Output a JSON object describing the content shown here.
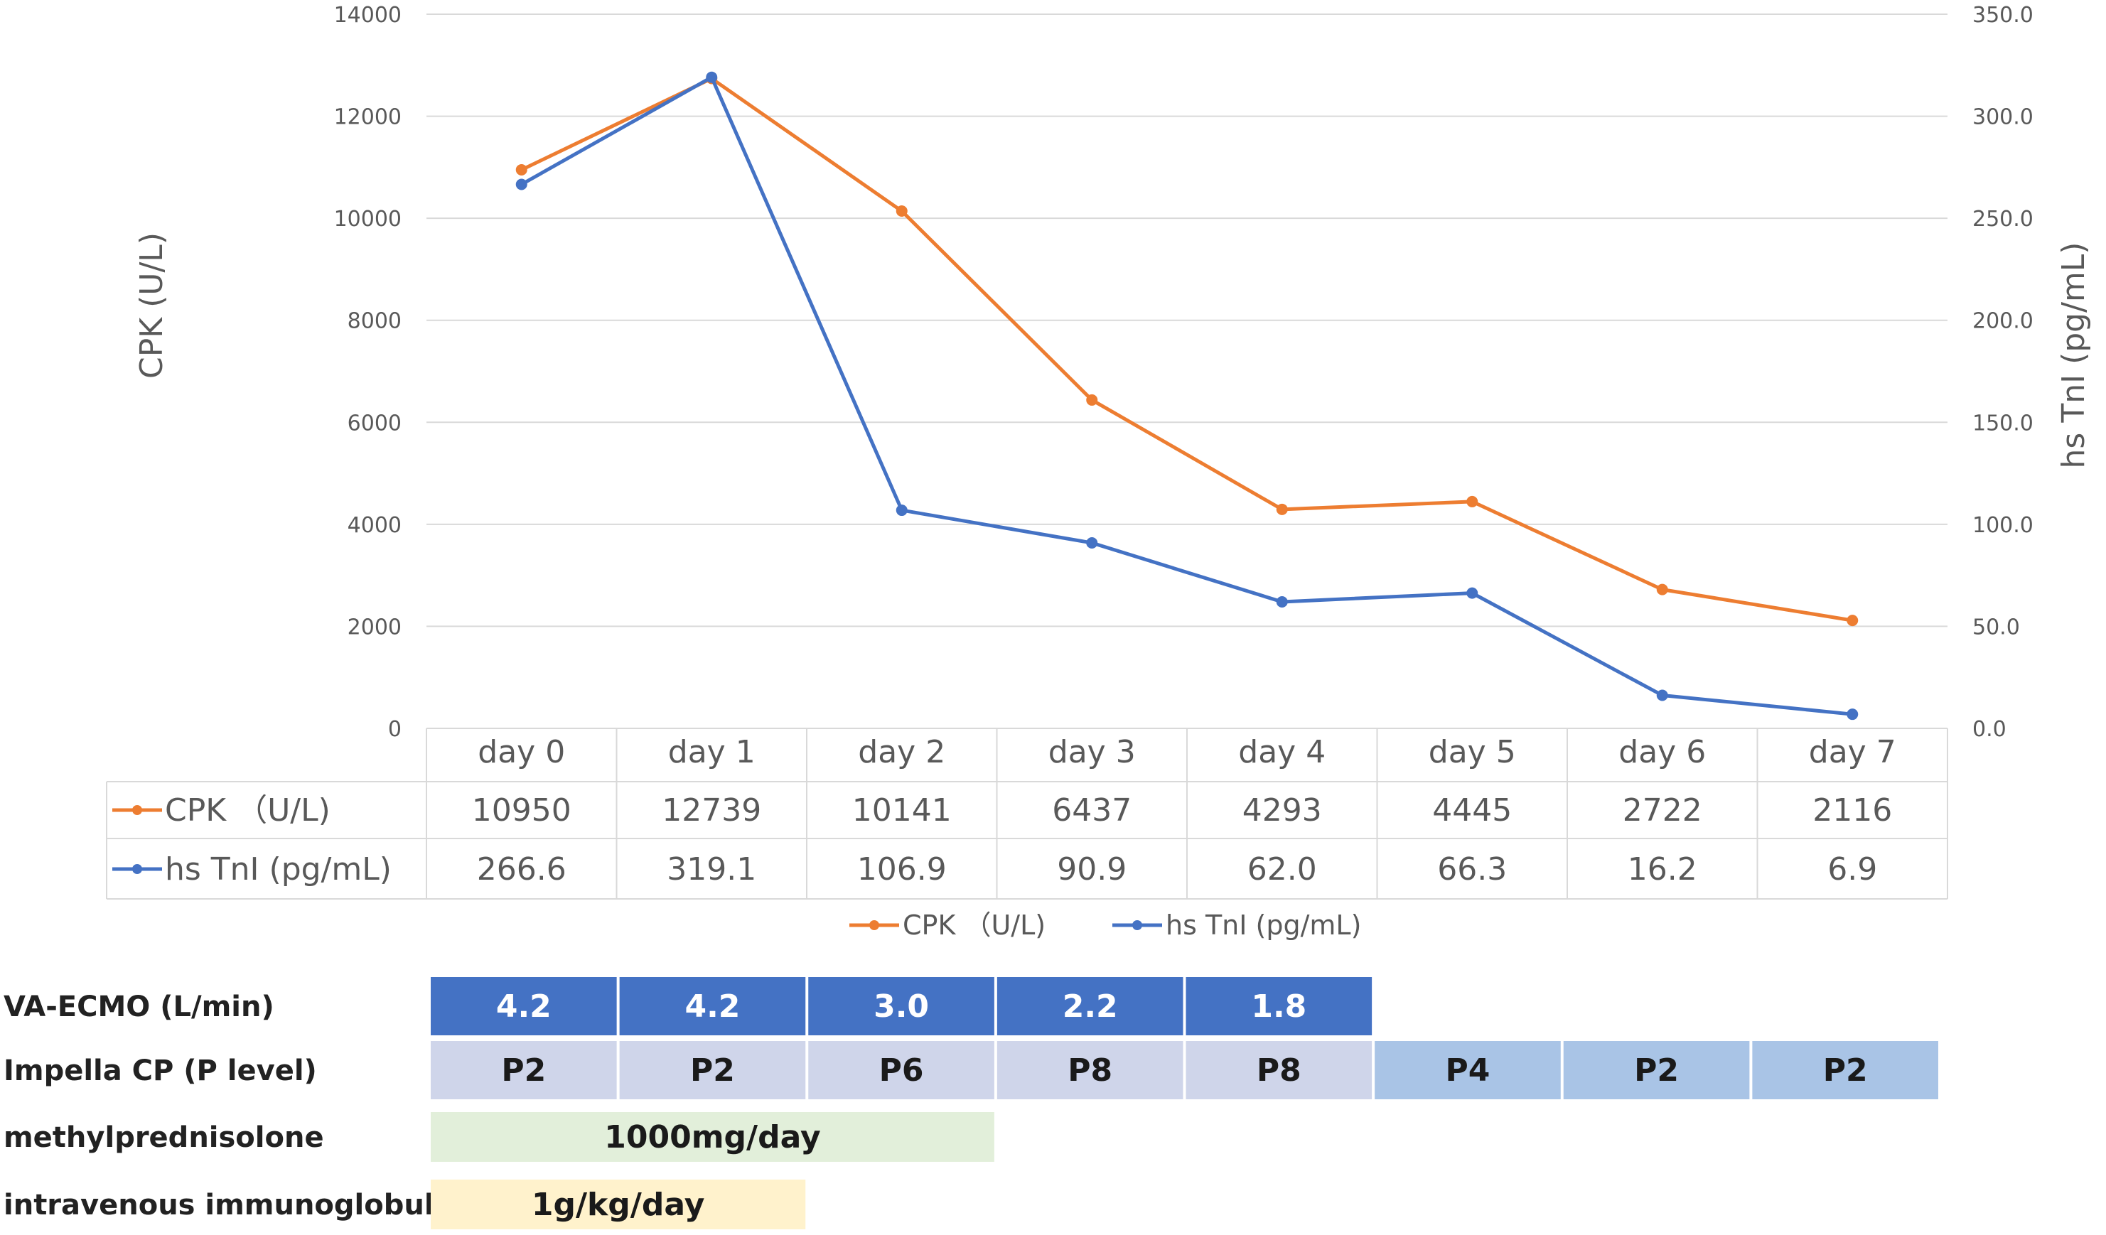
{
  "chart_data": {
    "type": "line",
    "categories": [
      "day 0",
      "day 1",
      "day 2",
      "day 3",
      "day 4",
      "day 5",
      "day 6",
      "day 7"
    ],
    "series": [
      {
        "name": "CPK （U/L)",
        "axis": "left",
        "color": "#ED7D31",
        "values": [
          10950,
          12739,
          10141,
          6437,
          4293,
          4445,
          2722,
          2116
        ],
        "display_values": [
          "10950",
          "12739",
          "10141",
          "6437",
          "4293",
          "4445",
          "2722",
          "2116"
        ]
      },
      {
        "name": "hs TnI (pg/mL)",
        "axis": "right",
        "color": "#4472C4",
        "values": [
          266.6,
          319.1,
          106.9,
          90.9,
          62.0,
          66.3,
          16.2,
          6.9
        ],
        "display_values": [
          "266.6",
          "319.1",
          "106.9",
          "90.9",
          "62.0",
          "66.3",
          "16.2",
          "6.9"
        ]
      }
    ],
    "ylabel": "CPK (U/L)",
    "y2label": "hs TnI (pg/mL)",
    "ylim": [
      0,
      14000
    ],
    "y2lim": [
      0,
      350
    ],
    "yticks": [
      "0",
      "2000",
      "4000",
      "6000",
      "8000",
      "10000",
      "12000",
      "14000"
    ],
    "y2ticks": [
      "0.0",
      "50.0",
      "100.0",
      "150.0",
      "200.0",
      "250.0",
      "300.0",
      "350.0"
    ],
    "legend": [
      "CPK （U/L)",
      "hs TnI (pg/mL)"
    ],
    "legend_position": "bottom",
    "grid": true,
    "data_table": true
  },
  "treatments": [
    {
      "label": "VA-ECMO (L/min)",
      "color": "#4472C4",
      "text_color": "#ffffff",
      "cells": [
        {
          "day": 0,
          "span": 1,
          "text": "4.2"
        },
        {
          "day": 1,
          "span": 1,
          "text": "4.2"
        },
        {
          "day": 2,
          "span": 1,
          "text": "3.0"
        },
        {
          "day": 3,
          "span": 1,
          "text": "2.2"
        },
        {
          "day": 4,
          "span": 1,
          "text": "1.8"
        }
      ]
    },
    {
      "label": "Impella CP (P level)",
      "color": "#CFD5EA",
      "text_color": "#1a1a1a",
      "cells": [
        {
          "day": 0,
          "span": 1,
          "text": "P2"
        },
        {
          "day": 1,
          "span": 1,
          "text": "P2"
        },
        {
          "day": 2,
          "span": 1,
          "text": "P6"
        },
        {
          "day": 3,
          "span": 1,
          "text": "P8"
        },
        {
          "day": 4,
          "span": 1,
          "text": "P8"
        },
        {
          "day": 5,
          "span": 1,
          "text": "P4",
          "color": "#A9C4E6"
        },
        {
          "day": 6,
          "span": 1,
          "text": "P2",
          "color": "#A9C4E6"
        },
        {
          "day": 7,
          "span": 1,
          "text": "P2",
          "color": "#A9C4E6"
        }
      ]
    },
    {
      "label": "methylprednisolone",
      "color": "#E2EFDA",
      "text_color": "#1a1a1a",
      "cells": [
        {
          "day": 0,
          "span": 3,
          "text": "1000mg/day"
        }
      ]
    },
    {
      "label": "intravenous immunoglobulin",
      "color": "#FFF2CC",
      "text_color": "#1a1a1a",
      "cells": [
        {
          "day": 0,
          "span": 2,
          "text": "1g/kg/day"
        }
      ]
    }
  ]
}
